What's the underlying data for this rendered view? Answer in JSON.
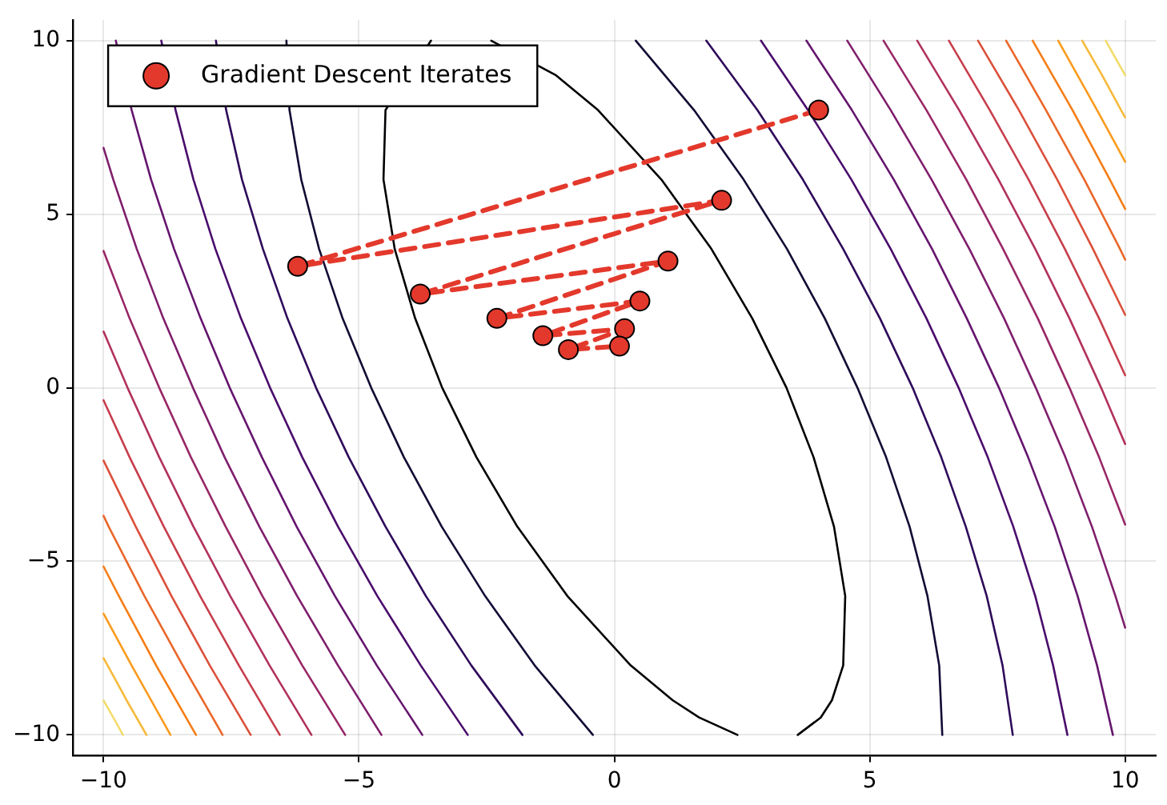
{
  "chart_data": {
    "type": "line",
    "xlim": [
      -10.6,
      10.6
    ],
    "ylim": [
      -10.6,
      10.6
    ],
    "xticks": [
      -10,
      -5,
      0,
      5,
      10
    ],
    "yticks": [
      -10,
      -5,
      0,
      5,
      10
    ],
    "grid": true,
    "legend": "top left",
    "series": [
      {
        "color": "#000004",
        "x": [
          3.59,
          4.04,
          4.26,
          4.48,
          4.52,
          4.3,
          3.9,
          3.37,
          2.7,
          1.9,
          0.92,
          -0.32,
          -1.14,
          -1.66,
          -2.41
        ],
        "values": [
          -10,
          -9.5,
          -9,
          -8,
          -6,
          -4,
          -2,
          0,
          2,
          4,
          6,
          8,
          9,
          null,
          10
        ]
      },
      {
        "color": "#000004",
        "x": [
          -3.59,
          -4.04,
          -4.26,
          -4.48,
          -4.52,
          -4.3,
          -3.9,
          -3.37,
          -2.7,
          -1.9,
          -0.92,
          0.32,
          1.14,
          1.66,
          2.41
        ],
        "values": [
          10,
          null,
          null,
          8,
          6,
          4,
          2,
          0,
          -2,
          -4,
          -6,
          -8,
          -9,
          -9.5,
          -10
        ]
      },
      {
        "color": "#140b34",
        "x": [
          6.42,
          6.36,
          6.13,
          5.78,
          5.32,
          4.76,
          4.12,
          3.38,
          2.53,
          1.56,
          0.42
        ],
        "values": [
          -10,
          -8,
          -6,
          -4,
          -2,
          0,
          2,
          4,
          6,
          8,
          10
        ]
      },
      {
        "color": "#140b34",
        "x": [
          -6.42,
          -6.36,
          -6.13,
          -5.78,
          -5.32,
          -4.76,
          -4.12,
          -3.38,
          -2.53,
          -1.56,
          -0.42
        ],
        "values": [
          10,
          8,
          6,
          4,
          2,
          0,
          -2,
          -4,
          -6,
          -8,
          -10
        ]
      },
      {
        "color": "#2e0a5a",
        "x": [
          7.8,
          7.6,
          7.29,
          6.88,
          6.4,
          5.84,
          5.2,
          4.48,
          3.69,
          2.8,
          1.8
        ],
        "values": [
          -10,
          -8,
          -6,
          -4,
          -2,
          0,
          2,
          4,
          6,
          8,
          10
        ]
      },
      {
        "color": "#2e0a5a",
        "x": [
          -7.8,
          -7.6,
          -7.29,
          -6.88,
          -6.4,
          -5.84,
          -5.2,
          -4.48,
          -3.69,
          -2.8,
          -1.8
        ],
        "values": [
          10,
          8,
          6,
          4,
          2,
          0,
          -2,
          -4,
          -6,
          -8,
          -10
        ]
      },
      {
        "color": "#4a0c6b",
        "x": [
          8.87,
          8.59,
          8.24,
          7.81,
          7.31,
          6.74,
          6.11,
          5.41,
          4.64,
          3.79,
          2.87
        ],
        "values": [
          -10,
          -8,
          -6,
          -4,
          -2,
          0,
          2,
          4,
          6,
          8,
          10
        ]
      },
      {
        "color": "#4a0c6b",
        "x": [
          -8.87,
          -8.59,
          -8.24,
          -7.81,
          -7.31,
          -6.74,
          -6.11,
          -5.41,
          -4.64,
          -3.79,
          -2.87
        ],
        "values": [
          10,
          8,
          6,
          4,
          2,
          0,
          -2,
          -4,
          -6,
          -8,
          -10
        ]
      },
      {
        "color": "#65156e",
        "x": [
          9.76,
          9.45,
          9.07,
          8.62,
          8.1,
          7.53,
          6.9,
          6.22,
          5.47,
          4.65,
          3.76
        ],
        "values": [
          -10,
          -8,
          -6,
          -4,
          -2,
          0,
          2,
          4,
          6,
          8,
          10
        ]
      },
      {
        "color": "#65156e",
        "x": [
          -9.76,
          -9.45,
          -9.07,
          -8.62,
          -8.1,
          -7.53,
          -6.9,
          -6.22,
          -5.47,
          -4.65,
          -3.76
        ],
        "values": [
          10,
          8,
          6,
          4,
          2,
          0,
          -2,
          -4,
          -6,
          -8,
          -10
        ]
      },
      {
        "color": "#7f1e6c",
        "x": [
          10,
          9.81,
          9.35,
          8.83,
          8.25,
          7.63,
          6.95,
          6.21,
          5.41,
          4.56
        ],
        "values": [
          -6.91,
          -6,
          -4,
          -2,
          0,
          2,
          4,
          6,
          8,
          10
        ]
      },
      {
        "color": "#7f1e6c",
        "x": [
          -10,
          -9.81,
          -9.35,
          -8.83,
          -8.25,
          -7.63,
          -6.95,
          -6.21,
          -5.41,
          -4.56
        ],
        "values": [
          6.91,
          6,
          4,
          2,
          0,
          -2,
          -4,
          -6,
          -8,
          -10
        ]
      },
      {
        "color": "#982766",
        "x": [
          10,
          9.49,
          8.91,
          8.29,
          7.61,
          6.89,
          6.11,
          5.27
        ],
        "values": [
          -3.94,
          -2,
          0,
          2,
          4,
          6,
          8,
          10
        ]
      },
      {
        "color": "#982766",
        "x": [
          -10,
          -9.49,
          -8.91,
          -8.29,
          -7.61,
          -6.89,
          -6.11,
          -5.27
        ],
        "values": [
          3.94,
          2,
          0,
          -2,
          -4,
          -6,
          -8,
          -10
        ]
      },
      {
        "color": "#b1325a",
        "x": [
          10,
          9.53,
          8.91,
          8.24,
          7.52,
          6.75,
          5.93
        ],
        "values": [
          -1.62,
          0,
          2,
          4,
          6,
          8,
          10
        ]
      },
      {
        "color": "#b1325a",
        "x": [
          -10,
          -9.53,
          -8.91,
          -8.24,
          -7.52,
          -6.75,
          -5.93
        ],
        "values": [
          1.62,
          0,
          -2,
          -4,
          -6,
          -8,
          -10
        ]
      },
      {
        "color": "#c73e4c",
        "x": [
          10,
          9.49,
          8.82,
          8.11,
          7.35,
          6.55
        ],
        "values": [
          0.36,
          2,
          4,
          6,
          8,
          10
        ]
      },
      {
        "color": "#c73e4c",
        "x": [
          -10,
          -9.49,
          -8.82,
          -8.11,
          -7.35,
          -6.55
        ],
        "values": [
          -0.36,
          -2,
          -4,
          -6,
          -8,
          -10
        ]
      },
      {
        "color": "#db503b",
        "x": [
          10,
          9.37,
          8.67,
          7.92,
          7.12
        ],
        "values": [
          2.1,
          4,
          6,
          8,
          10
        ]
      },
      {
        "color": "#db503b",
        "x": [
          -10,
          -9.37,
          -8.67,
          -7.92,
          -7.12
        ],
        "values": [
          -2.1,
          -4,
          -6,
          -8,
          -10
        ]
      },
      {
        "color": "#ea6729",
        "x": [
          10,
          9.9,
          9.2,
          8.45,
          7.67
        ],
        "values": [
          3.69,
          4,
          6,
          8,
          10
        ]
      },
      {
        "color": "#ea6729",
        "x": [
          -10,
          -9.9,
          -9.2,
          -8.45,
          -7.67
        ],
        "values": [
          -3.69,
          -4,
          -6,
          -8,
          -10
        ]
      },
      {
        "color": "#f57d15",
        "x": [
          10,
          9.7,
          8.97,
          8.19
        ],
        "values": [
          5.15,
          6,
          8,
          10
        ]
      },
      {
        "color": "#f57d15",
        "x": [
          -10,
          -9.7,
          -8.97,
          -8.19
        ],
        "values": [
          -5.15,
          -6,
          -8,
          -10
        ]
      },
      {
        "color": "#f99b1c",
        "x": [
          10,
          9.82,
          9.45,
          8.69
        ],
        "values": [
          6.51,
          7,
          8,
          10
        ]
      },
      {
        "color": "#f99b1c",
        "x": [
          -10,
          -9.82,
          -9.45,
          -8.69
        ],
        "values": [
          -6.51,
          -7,
          -8,
          -10
        ]
      },
      {
        "color": "#f6ba3a",
        "x": [
          10,
          9.92,
          9.55,
          9.16
        ],
        "values": [
          7.79,
          8,
          9,
          10
        ]
      },
      {
        "color": "#f6ba3a",
        "x": [
          -10,
          -9.92,
          -9.55,
          -9.16
        ],
        "values": [
          -7.79,
          -8,
          -9,
          -10
        ]
      },
      {
        "color": "#f2dc6c",
        "x": [
          10,
          9.81,
          9.62
        ],
        "values": [
          9.01,
          9.5,
          10
        ]
      },
      {
        "color": "#f2dc6c",
        "x": [
          -10,
          -9.81,
          -9.62
        ],
        "values": [
          -9.01,
          -9.5,
          -10
        ]
      },
      {
        "name": "Gradient Descent Iterates",
        "color": "#e3392c",
        "marker": "circle",
        "line_style": "dashed",
        "x": [
          4.0,
          -6.2,
          2.1,
          -3.8,
          1.05,
          -2.3,
          0.5,
          -1.4,
          0.2,
          -0.9,
          0.1
        ],
        "values": [
          8.0,
          3.5,
          5.4,
          2.7,
          3.65,
          2.0,
          2.5,
          1.5,
          1.7,
          1.1,
          1.2
        ]
      }
    ]
  }
}
